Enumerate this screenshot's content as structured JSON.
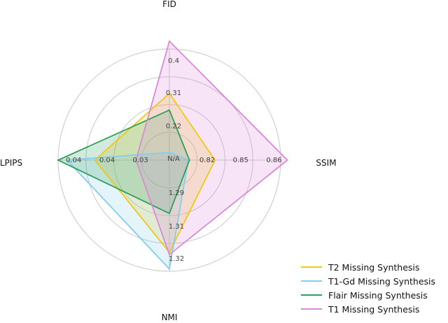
{
  "chart_data": {
    "type": "radar",
    "axes": [
      {
        "name": "FID",
        "ticks": [
          "N/A",
          "0.22",
          "0.31",
          "0.4"
        ]
      },
      {
        "name": "SSIM",
        "ticks": [
          "0.82",
          "0.85",
          "0.86"
        ]
      },
      {
        "name": "NMI",
        "ticks": [
          "1.29",
          "1.31",
          "1.32"
        ]
      },
      {
        "name": "LPIPS",
        "ticks": [
          "0.03",
          "0.04",
          "0.04"
        ]
      }
    ],
    "grid": true,
    "legend_position": "bottom-right",
    "series": [
      {
        "name": "T2 Missing Synthesis",
        "color": "#f2c811",
        "values": [
          0.6,
          0.41,
          0.83,
          0.67
        ]
      },
      {
        "name": "T1-Gd Missing Synthesis",
        "color": "#86ccee",
        "values": [
          0.07,
          0.17,
          0.98,
          0.92
        ]
      },
      {
        "name": "Flair Missing Synthesis",
        "color": "#2ca05a",
        "values": [
          0.45,
          0.18,
          0.48,
          1.0
        ]
      },
      {
        "name": "T1 Missing Synthesis",
        "color": "#d98ad9",
        "values": [
          1.07,
          1.06,
          0.85,
          0.3
        ]
      }
    ]
  }
}
